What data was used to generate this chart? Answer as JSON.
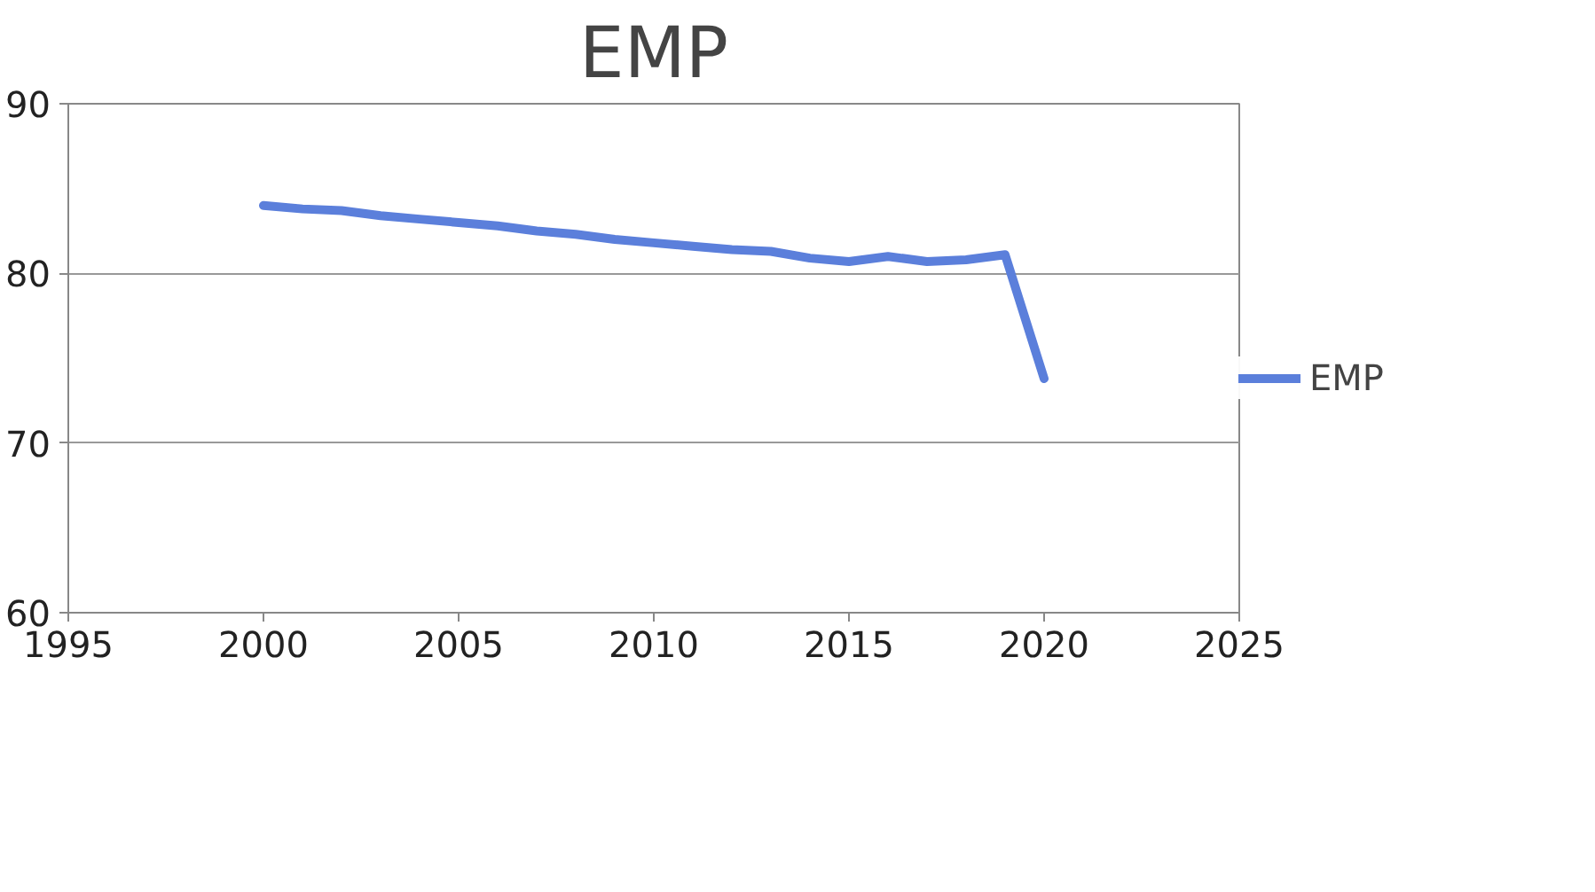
{
  "chart_data": {
    "type": "line",
    "title": "EMP",
    "x": [
      2000,
      2001,
      2002,
      2003,
      2004,
      2005,
      2006,
      2007,
      2008,
      2009,
      2010,
      2011,
      2012,
      2013,
      2014,
      2015,
      2016,
      2017,
      2018,
      2019,
      2020
    ],
    "series": [
      {
        "name": "EMP",
        "color": "#5b7fdb",
        "values": [
          84.0,
          83.8,
          83.7,
          83.4,
          83.2,
          83.0,
          82.8,
          82.5,
          82.3,
          82.0,
          81.8,
          81.6,
          81.4,
          81.3,
          80.9,
          80.7,
          81.0,
          80.7,
          80.8,
          81.1,
          73.8
        ]
      }
    ],
    "xlim": [
      1995,
      2025
    ],
    "xticks": [
      1995,
      2000,
      2005,
      2010,
      2015,
      2020,
      2025
    ],
    "ylim": [
      60,
      90
    ],
    "yticks": [
      60,
      70,
      80,
      90
    ],
    "grid": "y",
    "legend": "right",
    "marker": "none",
    "line_style": "solid"
  }
}
